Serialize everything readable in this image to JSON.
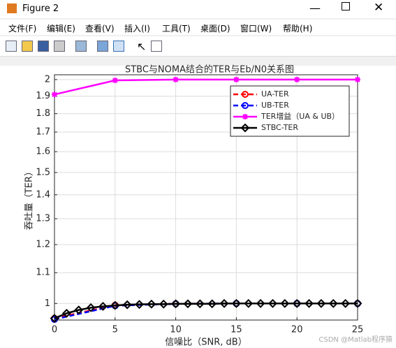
{
  "window_title": "Figure 2",
  "menus": [
    "文件(F)",
    "编辑(E)",
    "查看(V)",
    "插入(I)",
    "工具(T)",
    "桌面(D)",
    "窗口(W)",
    "帮助(H)"
  ],
  "watermark": "CSDN @Matlab程序猿",
  "chart_data": {
    "type": "line",
    "title": "STBC与NOMA结合的TER与Eb/N0关系图",
    "xlabel": "信噪比（SNR, dB）",
    "ylabel": "吞吐量（TER）",
    "xlim": [
      0,
      25
    ],
    "xticks": [
      0,
      5,
      10,
      15,
      20,
      25
    ],
    "ylim": [
      0.95,
      2.03
    ],
    "yticks": [
      1,
      1.1,
      1.2,
      1.3,
      1.4,
      1.5,
      1.6,
      1.7,
      1.8,
      1.9,
      2
    ],
    "log_y": true,
    "grid": true,
    "legend": "northeast",
    "series": [
      {
        "name": "UA-TER",
        "color": "#ff0000",
        "dashed": true,
        "marker": "o",
        "x": [
          0,
          5,
          10,
          15,
          20,
          25
        ],
        "values": [
          0.955,
          0.995,
          0.999,
          1,
          1,
          1
        ]
      },
      {
        "name": "UB-TER",
        "color": "#0000ff",
        "dashed": true,
        "marker": "o",
        "x": [
          0,
          5,
          10,
          15,
          20,
          25
        ],
        "values": [
          0.952,
          0.993,
          0.999,
          1,
          1,
          1
        ]
      },
      {
        "name": "TER增益（UA & UB）",
        "color": "#ff00ff",
        "dashed": false,
        "marker": "*",
        "x": [
          0,
          5,
          10,
          15,
          20,
          25
        ],
        "values": [
          1.91,
          1.995,
          2,
          2,
          2,
          2
        ]
      },
      {
        "name": "STBC-TER",
        "color": "#000000",
        "dashed": false,
        "marker": "diamond",
        "x": [
          0,
          1,
          2,
          3,
          4,
          5,
          6,
          7,
          8,
          9,
          10,
          11,
          12,
          13,
          14,
          15,
          16,
          17,
          18,
          19,
          20,
          21,
          22,
          23,
          24,
          25
        ],
        "values": [
          0.955,
          0.97,
          0.98,
          0.987,
          0.991,
          0.994,
          0.996,
          0.997,
          0.998,
          0.998,
          0.999,
          0.999,
          0.999,
          0.999,
          1,
          1,
          1,
          1,
          1,
          1,
          1,
          1,
          1,
          1,
          1,
          1
        ]
      }
    ]
  }
}
